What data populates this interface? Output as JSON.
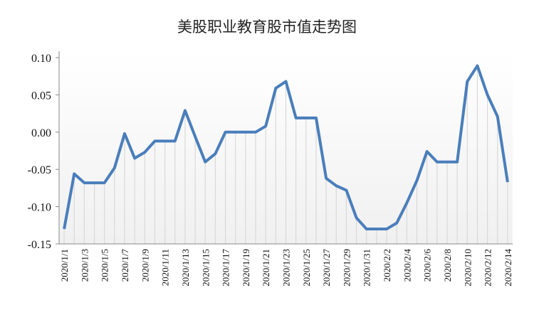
{
  "chart_data": {
    "type": "line",
    "title": "美股职业教育股市值走势图",
    "xlabel": "",
    "ylabel": "",
    "ylim": [
      -0.15,
      0.1
    ],
    "yticks": [
      "0.10",
      "0.05",
      "0.00",
      "-0.05",
      "-0.10",
      "-0.15"
    ],
    "ytick_values": [
      0.1,
      0.05,
      0.0,
      -0.05,
      -0.1,
      -0.15
    ],
    "grid": false,
    "drop_lines": true,
    "line_color": "#4a7ebb",
    "x": [
      "2020/1/1",
      "2020/1/2",
      "2020/1/3",
      "2020/1/4",
      "2020/1/5",
      "2020/1/6",
      "2020/1/7",
      "2020/1/8",
      "2020/1/9",
      "2020/1/10",
      "2020/1/11",
      "2020/1/12",
      "2020/1/13",
      "2020/1/14",
      "2020/1/15",
      "2020/1/16",
      "2020/1/17",
      "2020/1/18",
      "2020/1/19",
      "2020/1/20",
      "2020/1/21",
      "2020/1/22",
      "2020/1/23",
      "2020/1/24",
      "2020/1/25",
      "2020/1/26",
      "2020/1/27",
      "2020/1/28",
      "2020/1/29",
      "2020/1/30",
      "2020/1/31",
      "2020/2/1",
      "2020/2/2",
      "2020/2/3",
      "2020/2/4",
      "2020/2/5",
      "2020/2/6",
      "2020/2/7",
      "2020/2/8",
      "2020/2/9",
      "2020/2/10",
      "2020/2/11",
      "2020/2/12",
      "2020/2/13",
      "2020/2/14"
    ],
    "xtick_labels": [
      "2020/1/1",
      "2020/1/3",
      "2020/1/5",
      "2020/1/7",
      "2020/1/9",
      "2020/1/11",
      "2020/1/13",
      "2020/1/15",
      "2020/1/17",
      "2020/1/19",
      "2020/1/21",
      "2020/1/23",
      "2020/1/25",
      "2020/1/27",
      "2020/1/29",
      "2020/1/31",
      "2020/2/2",
      "2020/2/4",
      "2020/2/6",
      "2020/2/8",
      "2020/2/10",
      "2020/2/12",
      "2020/2/14"
    ],
    "values": [
      -0.13,
      -0.056,
      -0.068,
      -0.068,
      -0.068,
      -0.048,
      -0.002,
      -0.035,
      -0.027,
      -0.012,
      -0.012,
      -0.012,
      0.029,
      -0.006,
      -0.04,
      -0.029,
      0.0,
      0.0,
      0.0,
      0.0,
      0.008,
      0.059,
      0.068,
      0.019,
      0.019,
      0.019,
      -0.062,
      -0.072,
      -0.078,
      -0.115,
      -0.13,
      -0.13,
      -0.13,
      -0.122,
      -0.095,
      -0.065,
      -0.026,
      -0.04,
      -0.04,
      -0.04,
      0.068,
      0.089,
      0.05,
      0.021,
      -0.067
    ]
  }
}
